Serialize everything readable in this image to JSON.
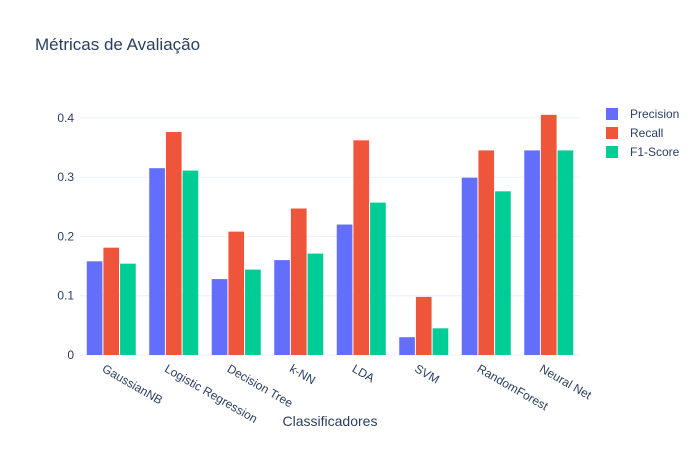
{
  "chart_data": {
    "type": "bar",
    "title": "Métricas de Avaliação",
    "xlabel": "Classificadores",
    "ylabel": "",
    "categories": [
      "GaussianNB",
      "Logistic Regression",
      "Decision Tree",
      "k-NN",
      "LDA",
      "SVM",
      "RandomForest",
      "Neural Net"
    ],
    "series": [
      {
        "name": "Precision",
        "color": "#636efa",
        "values": [
          0.158,
          0.315,
          0.128,
          0.16,
          0.22,
          0.03,
          0.299,
          0.345
        ]
      },
      {
        "name": "Recall",
        "color": "#ef553b",
        "values": [
          0.181,
          0.376,
          0.208,
          0.247,
          0.362,
          0.098,
          0.345,
          0.405
        ]
      },
      {
        "name": "F1-Score",
        "color": "#00cc96",
        "values": [
          0.154,
          0.311,
          0.144,
          0.171,
          0.257,
          0.045,
          0.276,
          0.345
        ]
      }
    ],
    "ylim": [
      0,
      0.43
    ],
    "yticks": [
      0,
      0.1,
      0.2,
      0.3,
      0.4
    ],
    "ytick_labels": [
      "0",
      "0.1",
      "0.2",
      "0.3",
      "0.4"
    ],
    "grid": true,
    "legend_position": "top-right"
  }
}
